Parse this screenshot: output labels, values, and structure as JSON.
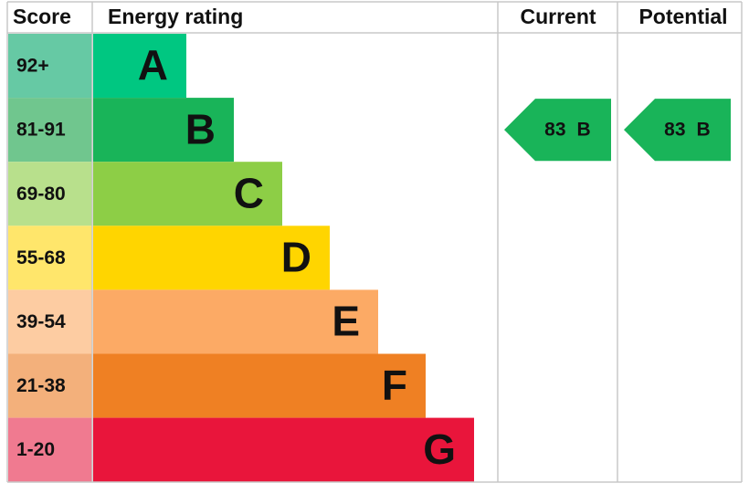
{
  "headers": {
    "score": "Score",
    "rating": "Energy rating",
    "current": "Current",
    "potential": "Potential"
  },
  "bands": [
    {
      "score": "92+",
      "letter": "A",
      "color": "#00c781",
      "light": "#66c9a4"
    },
    {
      "score": "81-91",
      "letter": "B",
      "color": "#19b459",
      "light": "#70c68e"
    },
    {
      "score": "69-80",
      "letter": "C",
      "color": "#8dce46",
      "light": "#b8e08c"
    },
    {
      "score": "55-68",
      "letter": "D",
      "color": "#ffd500",
      "light": "#ffe66b"
    },
    {
      "score": "39-54",
      "letter": "E",
      "color": "#fcaa65",
      "light": "#fdcca2"
    },
    {
      "score": "21-38",
      "letter": "F",
      "color": "#ef8023",
      "light": "#f3b07b"
    },
    {
      "score": "1-20",
      "letter": "G",
      "color": "#e9153b",
      "light": "#f07a90"
    }
  ],
  "current": {
    "value": 83,
    "rating": "B"
  },
  "potential": {
    "value": 83,
    "rating": "B"
  }
}
